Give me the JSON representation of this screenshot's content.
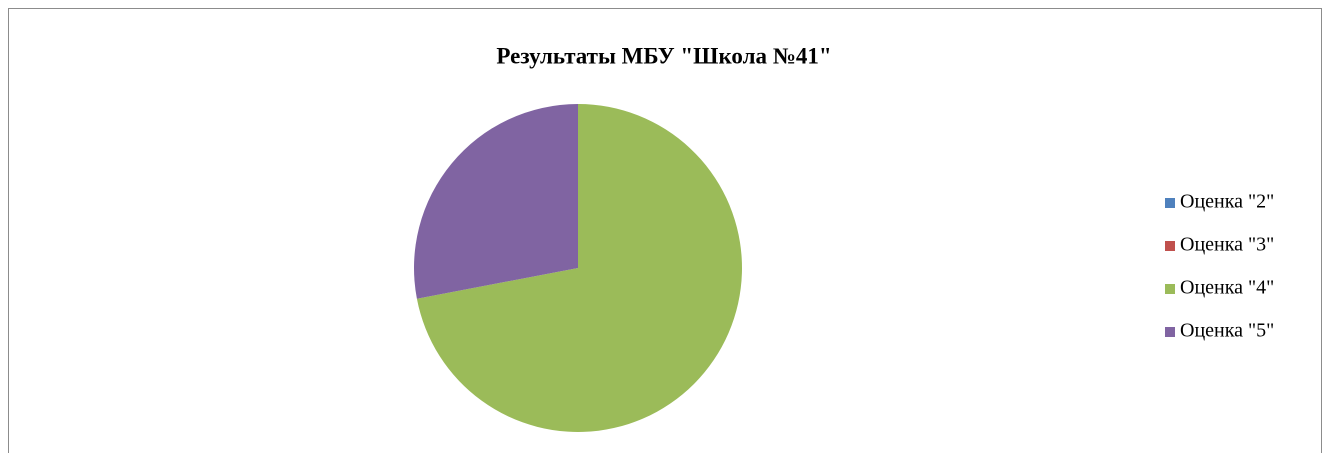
{
  "chart_data": {
    "type": "pie",
    "title": "Результаты МБУ \"Школа №41\"",
    "categories": [
      "Оценка \"2\"",
      "Оценка \"3\"",
      "Оценка \"4\"",
      "Оценка \"5\""
    ],
    "values": [
      0,
      0,
      72,
      28
    ],
    "colors": [
      "#4f81bd",
      "#c0504d",
      "#9bbb59",
      "#8064a2"
    ],
    "legend": "right"
  }
}
